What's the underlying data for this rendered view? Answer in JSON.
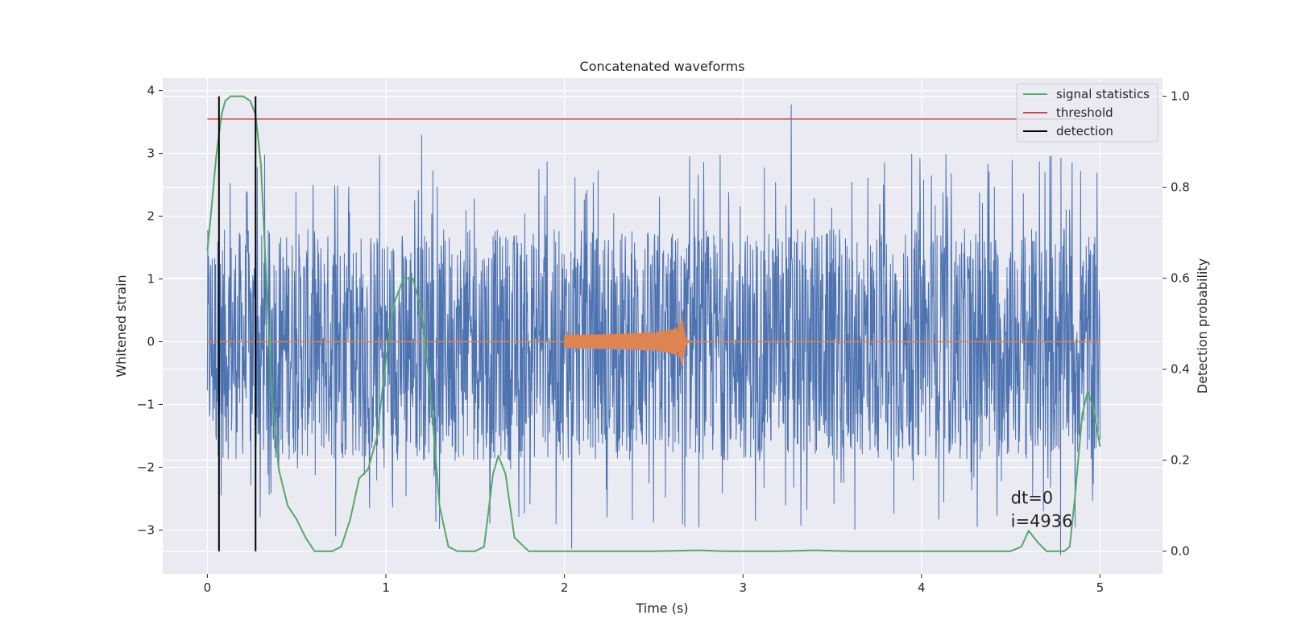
{
  "chart_data": {
    "type": "line",
    "title": "Concatenated waveforms",
    "xlabel": "Time (s)",
    "ylabel_left": "Whitened strain",
    "ylabel_right": "Detection probability",
    "xlim": [
      -0.25,
      5.35
    ],
    "ylim_left": [
      -3.7,
      4.2
    ],
    "ylim_right": [
      -0.05,
      1.04
    ],
    "x_ticks": [
      0,
      1,
      2,
      3,
      4,
      5
    ],
    "y_ticks_left": [
      -3,
      -2,
      -1,
      0,
      1,
      2,
      3,
      4
    ],
    "y_ticks_right": [
      0.0,
      0.2,
      0.4,
      0.6,
      0.8,
      1.0
    ],
    "grid": true,
    "legend_position": "top-right",
    "colors": {
      "strain": "#4c72b0",
      "injected_signal": "#dd8452",
      "signal_statistics": "#55a868",
      "threshold": "#c44e52",
      "detection": "#000000",
      "plot_background": "#eaeaf2",
      "grid": "#ffffff"
    },
    "series": [
      {
        "name": "signal statistics",
        "axis": "right",
        "x": [
          0,
          0.02,
          0.05,
          0.08,
          0.1,
          0.13,
          0.16,
          0.2,
          0.24,
          0.27,
          0.3,
          0.33,
          0.36,
          0.4,
          0.45,
          0.5,
          0.55,
          0.6,
          0.65,
          0.7,
          0.75,
          0.8,
          0.85,
          0.9,
          0.95,
          1.0,
          1.05,
          1.1,
          1.15,
          1.2,
          1.25,
          1.3,
          1.35,
          1.4,
          1.45,
          1.5,
          1.55,
          1.6,
          1.63,
          1.67,
          1.72,
          1.8,
          2.0,
          2.5,
          2.75,
          2.9,
          3.0,
          3.2,
          3.4,
          3.6,
          4.0,
          4.5,
          4.56,
          4.6,
          4.65,
          4.7,
          4.75,
          4.8,
          4.83,
          4.86,
          4.9,
          4.93,
          4.96,
          5.0
        ],
        "values": [
          0.66,
          0.74,
          0.87,
          0.96,
          0.99,
          1.0,
          1.0,
          1.0,
          0.99,
          0.96,
          0.85,
          0.6,
          0.35,
          0.18,
          0.1,
          0.07,
          0.03,
          0.0,
          0.0,
          0.0,
          0.01,
          0.07,
          0.16,
          0.18,
          0.25,
          0.42,
          0.55,
          0.6,
          0.6,
          0.53,
          0.35,
          0.1,
          0.01,
          0.0,
          0.0,
          0.0,
          0.01,
          0.17,
          0.21,
          0.17,
          0.03,
          0.0,
          0.0,
          0.0,
          0.002,
          0.0,
          0.0,
          0.0,
          0.002,
          0.0,
          0.0,
          0.0,
          0.01,
          0.045,
          0.02,
          0.0,
          0.0,
          0.0,
          0.01,
          0.12,
          0.3,
          0.35,
          0.32,
          0.23
        ]
      },
      {
        "name": "threshold",
        "axis": "right",
        "x": [
          0,
          5
        ],
        "values": [
          0.95,
          0.95
        ]
      },
      {
        "name": "detection",
        "axis": "right",
        "x_positions": [
          0.065,
          0.27
        ],
        "range": [
          0.0,
          1.0
        ]
      }
    ],
    "strain_noise": {
      "axis": "left",
      "x_range": [
        0,
        5
      ],
      "typical_range": [
        -1.9,
        1.8
      ],
      "extremes": [
        {
          "x": 3.27,
          "y": 3.78
        },
        {
          "x": 1.2,
          "y": 3.3
        },
        {
          "x": 4.78,
          "y": -3.4
        },
        {
          "x": 2.04,
          "y": -3.3
        },
        {
          "x": 0.72,
          "y": -3.1
        }
      ]
    },
    "injected_signal": {
      "axis": "left",
      "x_range": [
        2.0,
        2.75
      ],
      "merger_time": 2.66,
      "peak_amplitude": 0.48,
      "baseline": 0
    },
    "annotations": [
      {
        "text": "dt=0",
        "x": 4.5,
        "y": -2.58
      },
      {
        "text": "i=4936",
        "x": 4.5,
        "y": -2.95
      }
    ]
  }
}
